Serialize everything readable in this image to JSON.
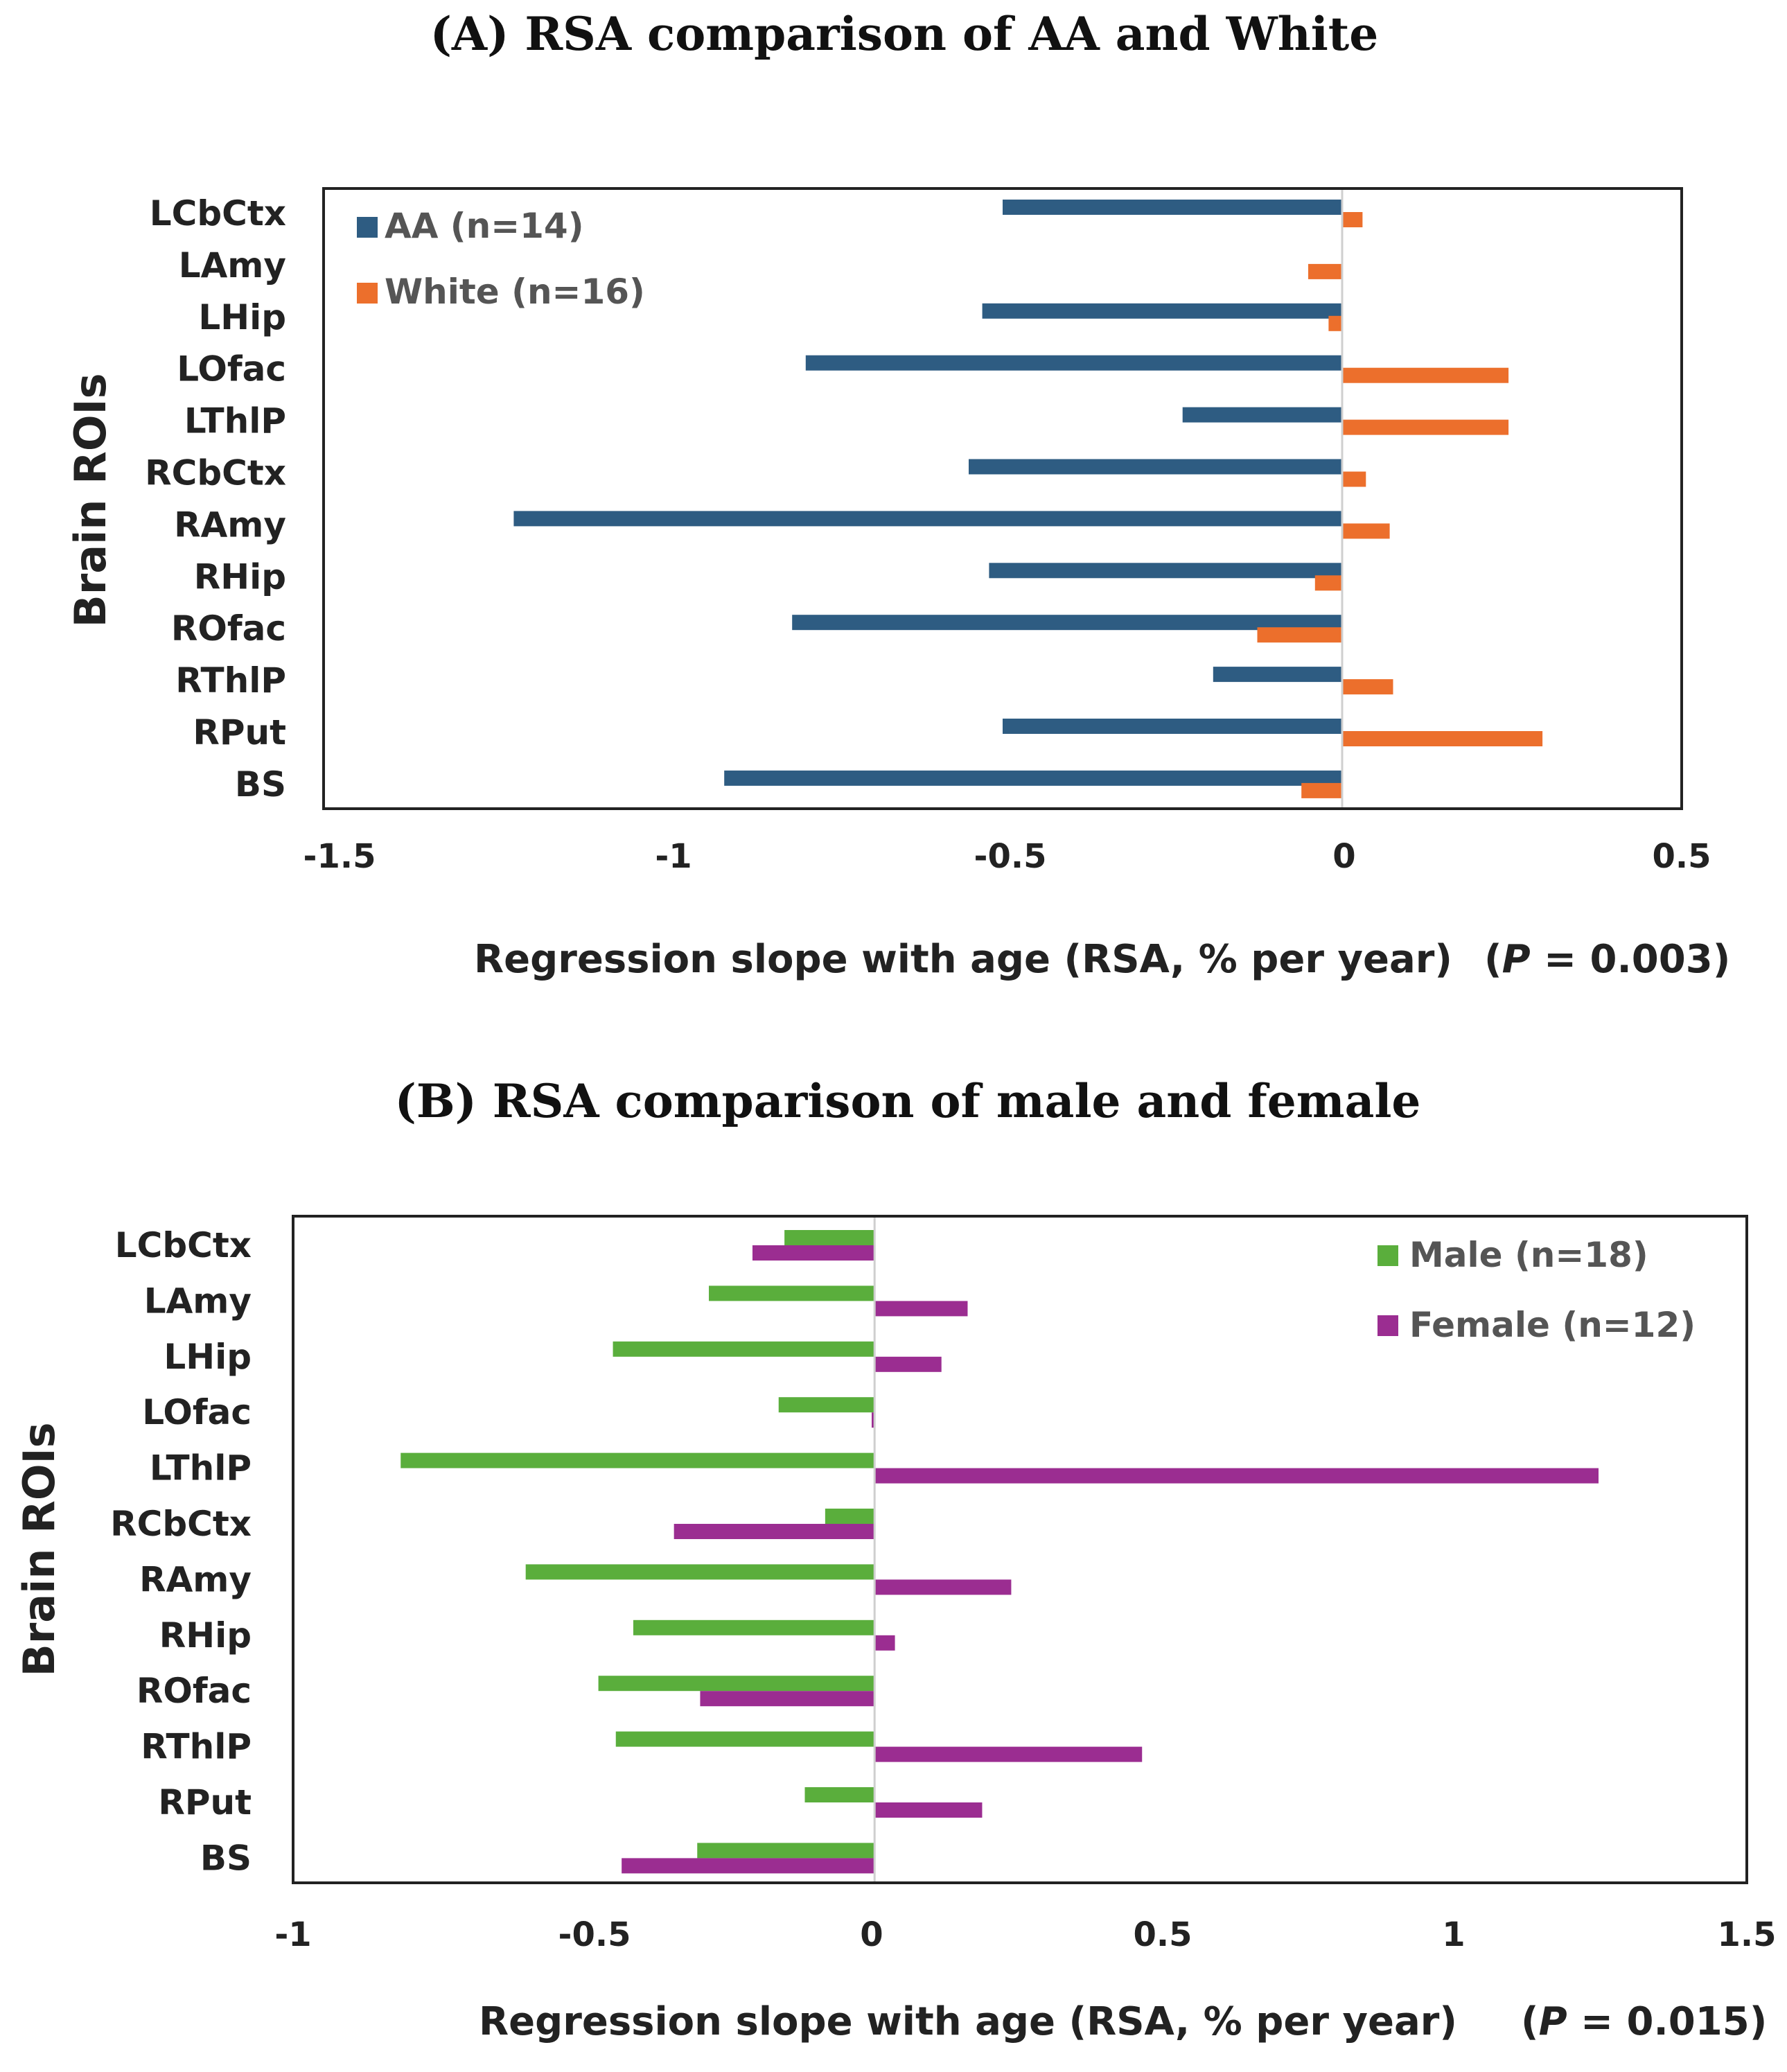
{
  "chart_data": [
    {
      "type": "bar",
      "orientation": "horizontal",
      "title": "(A) RSA comparison of AA and White",
      "ylabel": "Brain ROIs",
      "xlabel": "Regression slope with age (RSA, % per year)",
      "p_value_label": {
        "open": "(",
        "p": "P",
        "rest": " = 0.003)"
      },
      "xlim": [
        -1.5,
        0.5
      ],
      "xticks": [
        -1.5,
        -1,
        -0.5,
        0,
        0.5
      ],
      "xtick_labels": [
        "-1.5",
        "-1",
        "-0.5",
        "0",
        "0.5"
      ],
      "categories": [
        "LCbCtx",
        "LAmy",
        "LHip",
        "LOfac",
        "LThlP",
        "RCbCtx",
        "RAmy",
        "RHip",
        "ROfac",
        "RThlP",
        "RPut",
        "BS"
      ],
      "series": [
        {
          "name": "AA (n=14)",
          "color": "#2e5c82",
          "values": [
            -0.5,
            0,
            -0.53,
            -0.79,
            -0.235,
            -0.55,
            -1.22,
            -0.52,
            -0.81,
            -0.19,
            -0.5,
            -0.91
          ]
        },
        {
          "name": "White (n=16)",
          "color": "#ec6f2c",
          "values": [
            0.03,
            -0.05,
            -0.02,
            0.245,
            0.245,
            0.035,
            0.07,
            -0.04,
            -0.125,
            0.075,
            0.295,
            -0.06
          ]
        }
      ],
      "legend_position": "top-left",
      "grid": false
    },
    {
      "type": "bar",
      "orientation": "horizontal",
      "title": "(B) RSA comparison of male and female",
      "ylabel": "Brain ROIs",
      "xlabel": "Regression slope with age (RSA, % per year)",
      "p_value_label": {
        "open": "(",
        "p": "P",
        "rest": " = 0.015)"
      },
      "xlim": [
        -1,
        1.5
      ],
      "xticks": [
        -1,
        -0.5,
        0,
        0.5,
        1,
        1.5
      ],
      "xtick_labels": [
        "-1",
        "-0.5",
        "0",
        "0.5",
        "1",
        "1.5"
      ],
      "categories": [
        "LCbCtx",
        "LAmy",
        "LHip",
        "LOfac",
        "LThlP",
        "RCbCtx",
        "RAmy",
        "RHip",
        "ROfac",
        "RThlP",
        "RPut",
        "BS"
      ],
      "series": [
        {
          "name": "Male (n=18)",
          "color": "#5aae3c",
          "values": [
            -0.155,
            -0.285,
            -0.45,
            -0.165,
            -0.815,
            -0.085,
            -0.6,
            -0.415,
            -0.475,
            -0.445,
            -0.12,
            -0.305
          ]
        },
        {
          "name": "Female (n=12)",
          "color": "#9b2d91",
          "values": [
            -0.21,
            0.16,
            0.115,
            -0.005,
            1.245,
            -0.345,
            0.235,
            0.035,
            -0.3,
            0.46,
            0.185,
            -0.435
          ]
        }
      ],
      "legend_position": "top-right",
      "grid": false
    }
  ]
}
